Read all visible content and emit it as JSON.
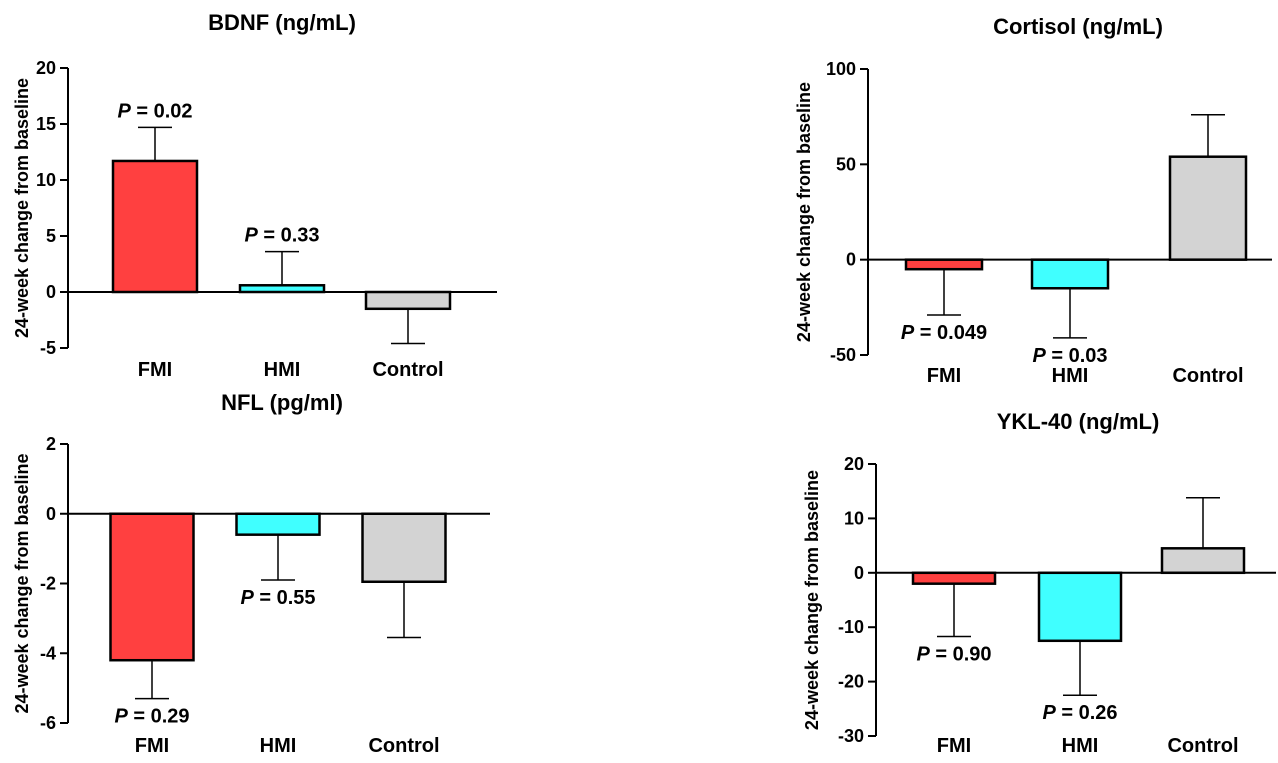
{
  "chart_data": [
    {
      "type": "bar",
      "title": "BDNF (ng/mL)",
      "ylabel": "24-week change from baseline",
      "xlabel": "",
      "categories": [
        "FMI",
        "HMI",
        "Control"
      ],
      "values": [
        11.7,
        0.6,
        -1.5
      ],
      "error_bars": [
        3.0,
        3.0,
        3.1
      ],
      "error_direction": [
        "up",
        "up",
        "down"
      ],
      "ylim": [
        -5,
        20
      ],
      "yticks": [
        20,
        15,
        10,
        5,
        0,
        -5
      ],
      "ytick_labels": [
        "20",
        "15",
        "10",
        "5",
        "0",
        "-5"
      ],
      "annotations": [
        {
          "category": "FMI",
          "p_label": "P",
          "p_rest": " = 0.02",
          "position": "above"
        },
        {
          "category": "HMI",
          "p_label": "P",
          "p_rest": " = 0.33",
          "position": "above"
        }
      ],
      "colors": [
        "#ff4040",
        "#40ffff",
        "#d3d3d3"
      ],
      "grid": false,
      "legend": "none"
    },
    {
      "type": "bar",
      "title": "Cortisol (ng/mL)",
      "ylabel": "24-week change from baseline",
      "xlabel": "",
      "categories": [
        "FMI",
        "HMI",
        "Control"
      ],
      "values": [
        -5,
        -15,
        54
      ],
      "error_bars": [
        24,
        26,
        22
      ],
      "error_direction": [
        "down",
        "down",
        "up"
      ],
      "ylim": [
        -50,
        100
      ],
      "yticks": [
        100,
        50,
        0,
        -50
      ],
      "ytick_labels": [
        "100",
        "50",
        "0",
        "-50"
      ],
      "annotations": [
        {
          "category": "FMI",
          "p_label": "P",
          "p_rest": " = 0.049",
          "position": "below"
        },
        {
          "category": "HMI",
          "p_label": "P",
          "p_rest": " = 0.03",
          "position": "below"
        }
      ],
      "colors": [
        "#ff4040",
        "#40ffff",
        "#d3d3d3"
      ],
      "grid": false,
      "legend": "none"
    },
    {
      "type": "bar",
      "title": "NFL (pg/ml)",
      "ylabel": "24-week change from baseline",
      "xlabel": "",
      "categories": [
        "FMI",
        "HMI",
        "Control"
      ],
      "values": [
        -4.2,
        -0.6,
        -1.95
      ],
      "error_bars": [
        1.1,
        1.3,
        1.6
      ],
      "error_direction": [
        "down",
        "down",
        "down"
      ],
      "ylim": [
        -6,
        2
      ],
      "yticks": [
        2,
        0,
        -2,
        -4,
        -6
      ],
      "ytick_labels": [
        "2",
        "0",
        "-2",
        "-4",
        "-6"
      ],
      "annotations": [
        {
          "category": "FMI",
          "p_label": "P",
          "p_rest": " = 0.29",
          "position": "below"
        },
        {
          "category": "HMI",
          "p_label": "P",
          "p_rest": " = 0.55",
          "position": "below"
        }
      ],
      "colors": [
        "#ff4040",
        "#40ffff",
        "#d3d3d3"
      ],
      "grid": false,
      "legend": "none"
    },
    {
      "type": "bar",
      "title": "YKL-40 (ng/mL)",
      "ylabel": "24-week change from baseline",
      "xlabel": "",
      "categories": [
        "FMI",
        "HMI",
        "Control"
      ],
      "values": [
        -2,
        -12.5,
        4.5
      ],
      "error_bars": [
        9.7,
        10.0,
        9.3
      ],
      "error_direction": [
        "down",
        "down",
        "up"
      ],
      "ylim": [
        -30,
        20
      ],
      "yticks": [
        20,
        10,
        0,
        -10,
        -20,
        -30
      ],
      "ytick_labels": [
        "20",
        "10",
        "0",
        "-10",
        "-20",
        "-30"
      ],
      "annotations": [
        {
          "category": "FMI",
          "p_label": "P",
          "p_rest": " = 0.90",
          "position": "below"
        },
        {
          "category": "HMI",
          "p_label": "P",
          "p_rest": " = 0.26",
          "position": "below"
        }
      ],
      "colors": [
        "#ff4040",
        "#40ffff",
        "#d3d3d3"
      ],
      "grid": false,
      "legend": "none"
    }
  ]
}
